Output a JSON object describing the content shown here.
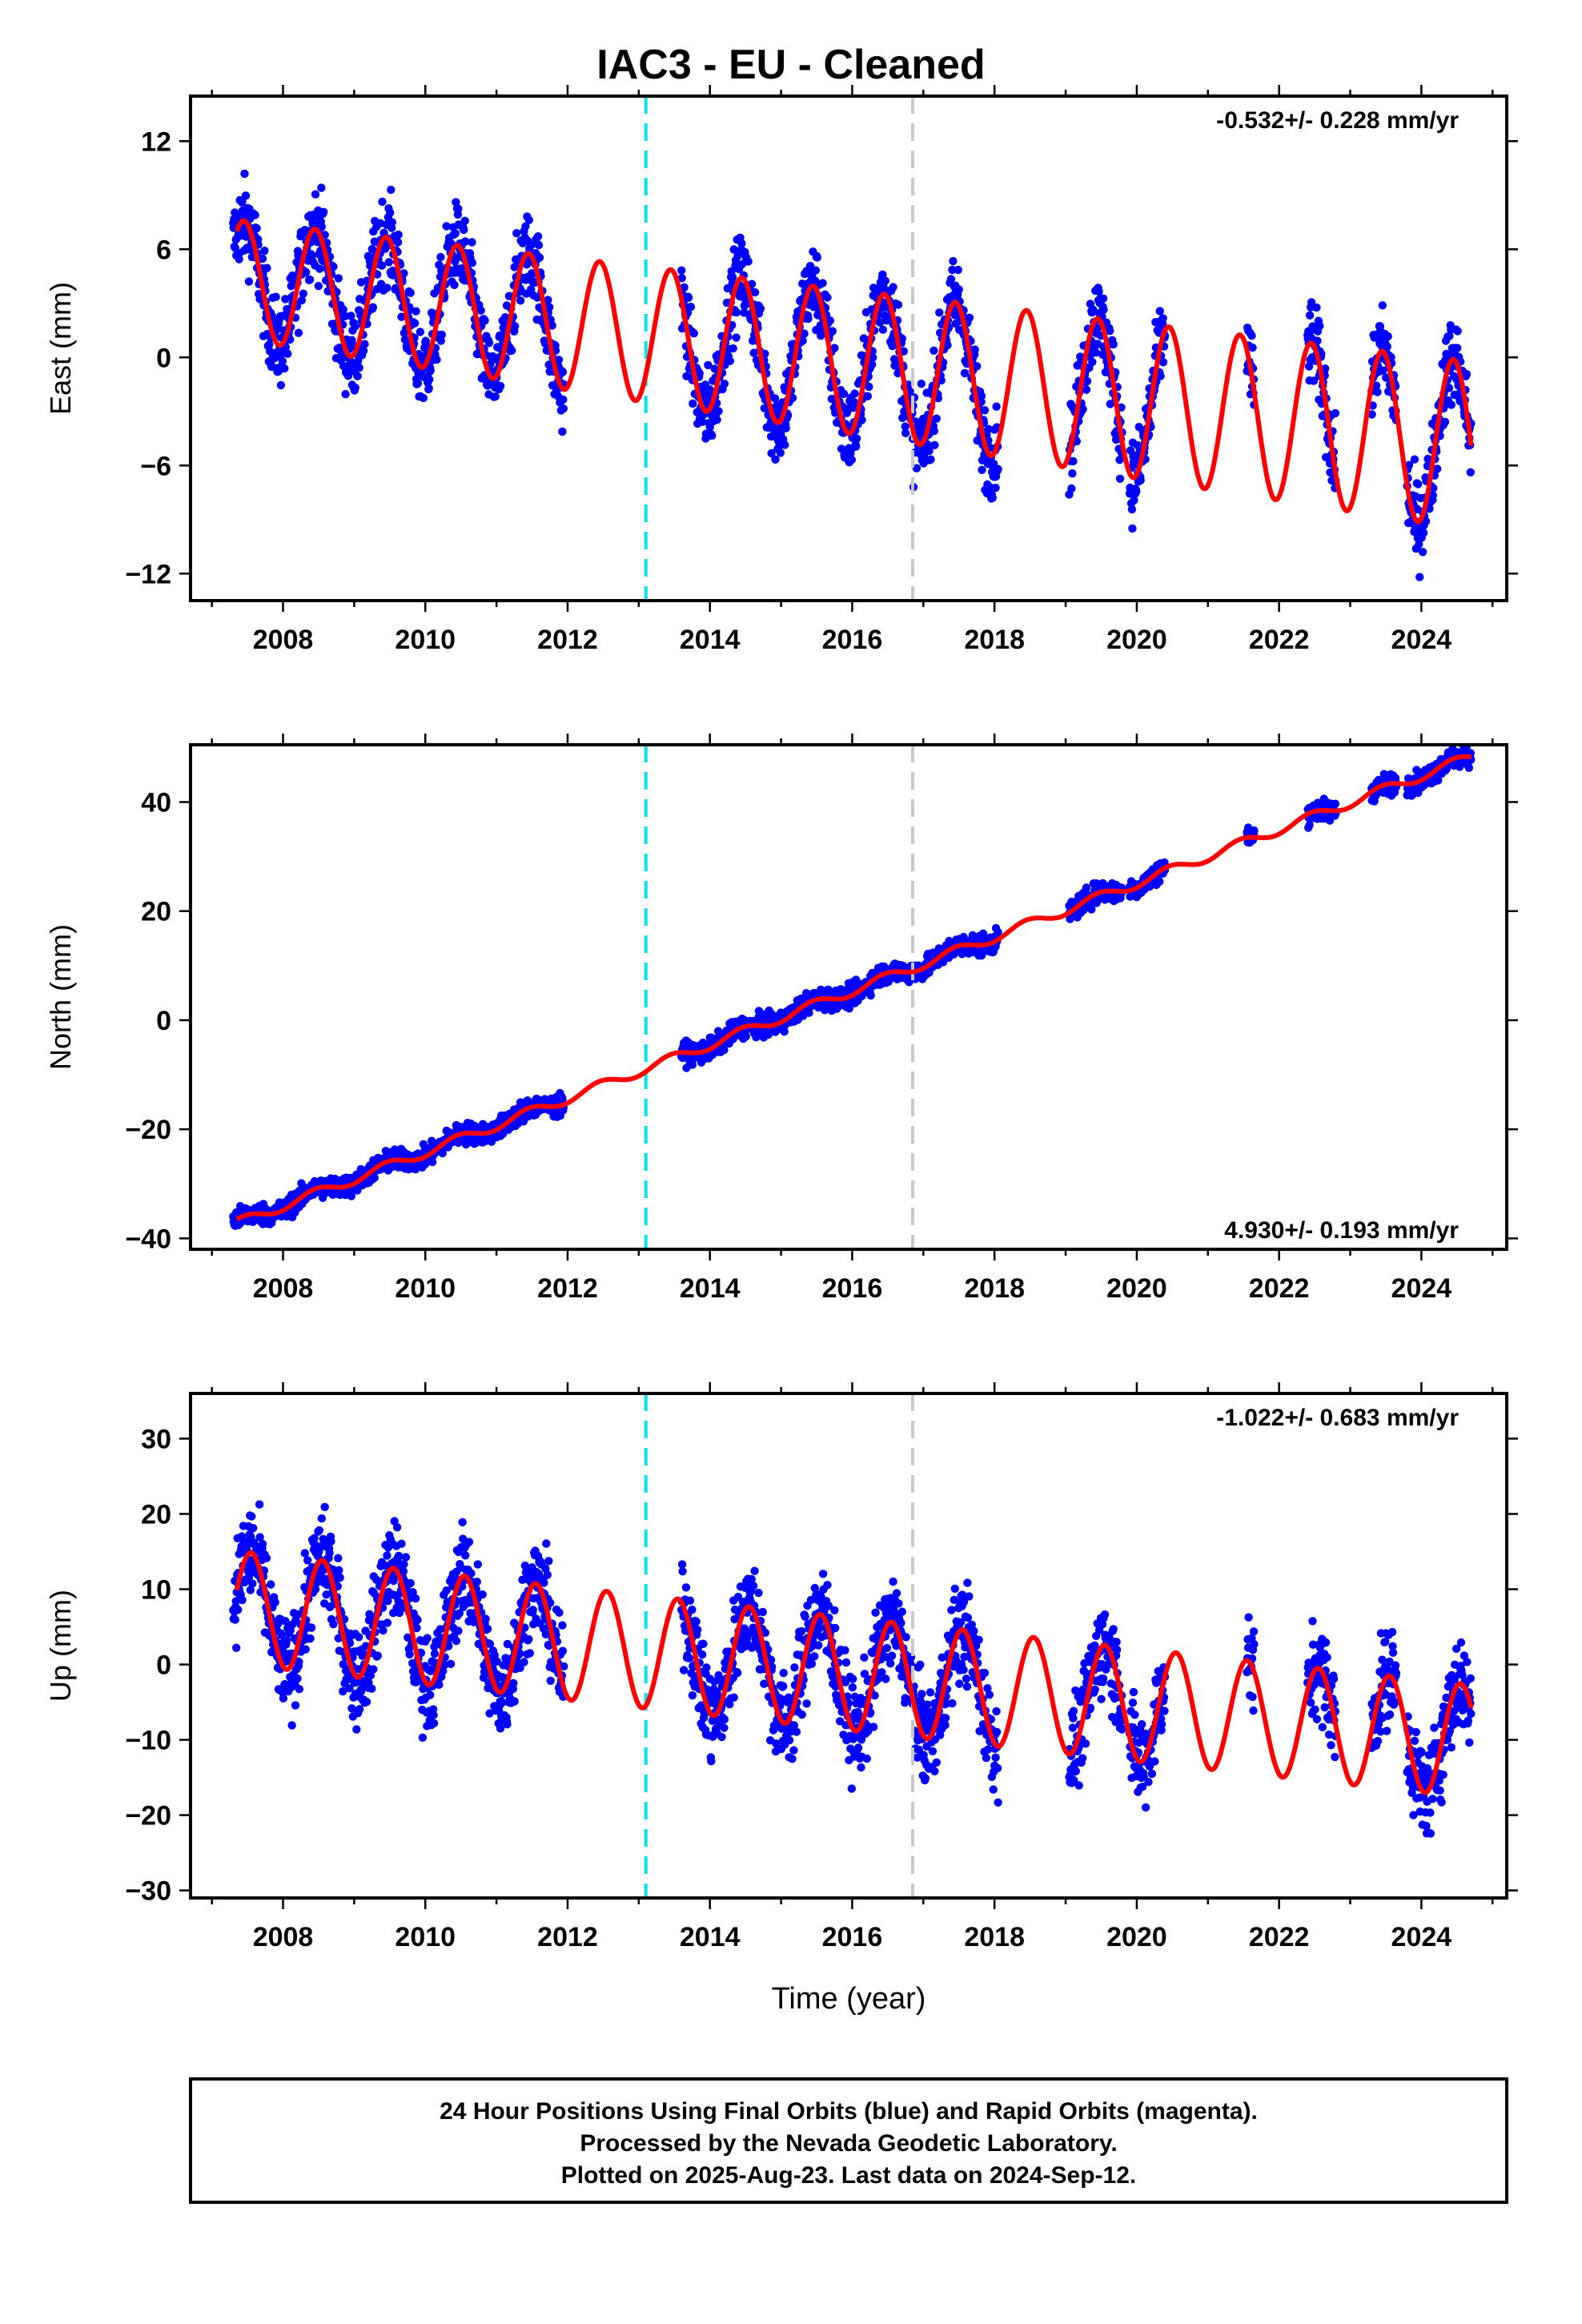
{
  "title": "IAC3  - EU - Cleaned",
  "xlabel": "Time (year)",
  "footer": [
    "24 Hour Positions Using Final Orbits (blue) and Rapid Orbits (magenta).",
    "Processed by the Nevada Geodetic Laboratory.",
    "Plotted on 2025-Aug-23. Last data on 2024-Sep-12."
  ],
  "colors": {
    "data": "#0000ff",
    "model": "#ff0000",
    "equipment_change": "#00e5ee",
    "other_event": "#c8c8c8"
  },
  "chart_data": [
    {
      "type": "scatter",
      "ylabel": "East (mm)",
      "rate": "-0.532+/- 0.228 mm/yr",
      "rate_position": "top-right",
      "xlim": [
        2006.7,
        2025.2
      ],
      "ylim": [
        -13.5,
        14.5
      ],
      "xticks": [
        2008,
        2010,
        2012,
        2014,
        2016,
        2018,
        2020,
        2022,
        2024
      ],
      "yticks": [
        -12,
        -6,
        0,
        6,
        12
      ],
      "event_lines": [
        2013.1,
        2016.85
      ],
      "model": {
        "offset": 4.3,
        "trend": -0.532,
        "amp": 3.3,
        "amp_growth": 0.08,
        "phase_year": 2007.45,
        "offset_jump_2013": 0.0
      },
      "spread": 2.2,
      "data_periods": [
        [
          2007.3,
          2011.95
        ],
        [
          2013.6,
          2018.05
        ],
        [
          2019.05,
          2019.8
        ],
        [
          2019.9,
          2020.4
        ],
        [
          2021.55,
          2021.65
        ],
        [
          2022.4,
          2022.8
        ],
        [
          2023.3,
          2023.65
        ],
        [
          2023.8,
          2024.7
        ]
      ]
    },
    {
      "type": "scatter",
      "ylabel": "North (mm)",
      "rate": "4.930+/- 0.193 mm/yr",
      "rate_position": "bottom-right",
      "xlim": [
        2006.7,
        2025.2
      ],
      "ylim": [
        -42,
        50.5
      ],
      "xticks": [
        2008,
        2010,
        2012,
        2014,
        2016,
        2018,
        2020,
        2022,
        2024
      ],
      "yticks": [
        -40,
        -20,
        0,
        20,
        40
      ],
      "event_lines": [
        2013.1,
        2016.85
      ],
      "model": {
        "offset": -37.0,
        "trend": 4.93,
        "amp": 0.9,
        "amp_growth": 0.0,
        "phase_year": 2007.45,
        "offset_jump_2013": 0.0
      },
      "spread": 1.8,
      "data_periods": [
        [
          2007.3,
          2011.95
        ],
        [
          2013.6,
          2018.05
        ],
        [
          2019.05,
          2019.8
        ],
        [
          2019.9,
          2020.4
        ],
        [
          2021.55,
          2021.65
        ],
        [
          2022.4,
          2022.8
        ],
        [
          2023.3,
          2023.65
        ],
        [
          2023.8,
          2024.7
        ]
      ]
    },
    {
      "type": "scatter",
      "ylabel": "Up (mm)",
      "rate": "-1.022+/- 0.683 mm/yr",
      "rate_position": "top-right",
      "xlim": [
        2006.7,
        2025.2
      ],
      "ylim": [
        -31,
        36
      ],
      "xticks": [
        2008,
        2010,
        2012,
        2014,
        2016,
        2018,
        2020,
        2022,
        2024
      ],
      "yticks": [
        -30,
        -20,
        -10,
        0,
        10,
        20,
        30
      ],
      "event_lines": [
        2013.1,
        2016.85
      ],
      "model": {
        "offset": 7.5,
        "trend": -1.022,
        "amp": 7.5,
        "amp_growth": 0.0,
        "phase_year": 2007.55,
        "offset_jump_2013": 0.0
      },
      "spread": 6.0,
      "data_periods": [
        [
          2007.3,
          2011.95
        ],
        [
          2013.6,
          2018.05
        ],
        [
          2019.05,
          2019.8
        ],
        [
          2019.9,
          2020.4
        ],
        [
          2021.55,
          2021.65
        ],
        [
          2022.4,
          2022.8
        ],
        [
          2023.3,
          2023.65
        ],
        [
          2023.8,
          2024.7
        ]
      ]
    }
  ]
}
